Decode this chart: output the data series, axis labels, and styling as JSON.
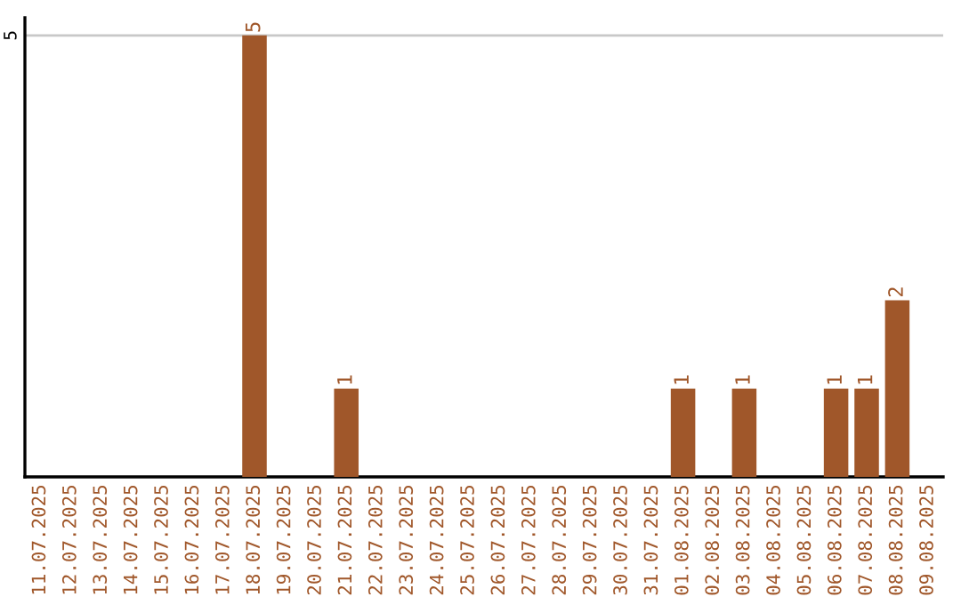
{
  "chart_data": {
    "type": "bar",
    "categories": [
      "11.07.2025",
      "12.07.2025",
      "13.07.2025",
      "14.07.2025",
      "15.07.2025",
      "16.07.2025",
      "17.07.2025",
      "18.07.2025",
      "19.07.2025",
      "20.07.2025",
      "21.07.2025",
      "22.07.2025",
      "23.07.2025",
      "24.07.2025",
      "25.07.2025",
      "26.07.2025",
      "27.07.2025",
      "28.07.2025",
      "29.07.2025",
      "30.07.2025",
      "31.07.2025",
      "01.08.2025",
      "02.08.2025",
      "03.08.2025",
      "04.08.2025",
      "05.08.2025",
      "06.08.2025",
      "07.08.2025",
      "08.08.2025",
      "09.08.2025"
    ],
    "values": [
      0,
      0,
      0,
      0,
      0,
      0,
      0,
      5,
      0,
      0,
      1,
      0,
      0,
      0,
      0,
      0,
      0,
      0,
      0,
      0,
      0,
      1,
      0,
      1,
      0,
      0,
      1,
      1,
      2,
      0
    ],
    "value_labels": [
      null,
      null,
      null,
      null,
      null,
      null,
      null,
      "5",
      null,
      null,
      "1",
      null,
      null,
      null,
      null,
      null,
      null,
      null,
      null,
      null,
      null,
      "1",
      null,
      "1",
      null,
      null,
      "1",
      "1",
      "2",
      null
    ],
    "color": "#a0572a",
    "ylim": [
      0,
      5.2
    ],
    "yticks": [
      5
    ],
    "grid": "y"
  }
}
